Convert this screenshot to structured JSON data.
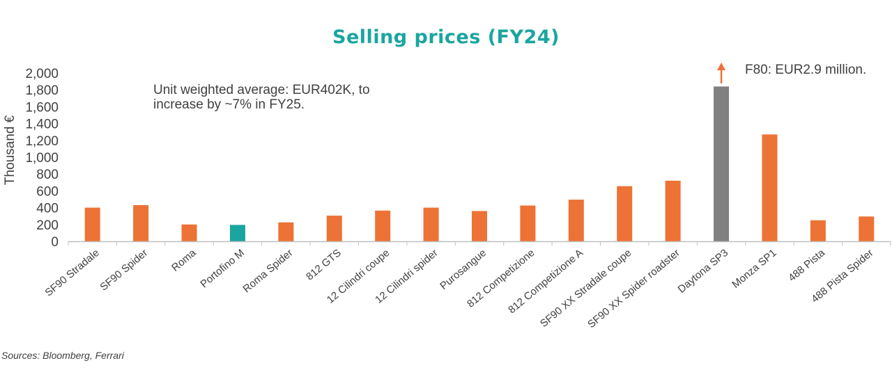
{
  "chart_data": {
    "type": "bar",
    "title": "Selling prices (FY24)",
    "ylabel": "Thousand €",
    "xlabel": "",
    "ylim": [
      0,
      2000
    ],
    "yticks": [
      0,
      200,
      400,
      600,
      800,
      1000,
      1200,
      1400,
      1600,
      1800,
      2000
    ],
    "ytick_labels": [
      "0",
      "200",
      "400",
      "600",
      "800",
      "1,000",
      "1,200",
      "1,400",
      "1,600",
      "1,800",
      "2,000"
    ],
    "grid": false,
    "categories": [
      "SF90 Stradale",
      "SF90 Spider",
      "Roma",
      "Portofino M",
      "Roma Spider",
      "812 GTS",
      "12 Cilindri coupe",
      "12 Cilindri spider",
      "Purosangue",
      "812 Competizione",
      "812 Competizione A",
      "SF90 XX Stradale coupe",
      "SF90 XX Spider roadster",
      "Daytona SP3",
      "Monza SP1",
      "488 Pista",
      "488 Pista Spider"
    ],
    "values": [
      400,
      430,
      200,
      195,
      225,
      305,
      365,
      400,
      360,
      425,
      495,
      655,
      720,
      1840,
      1270,
      250,
      295
    ],
    "bar_colors": [
      "#ed7235",
      "#ed7235",
      "#ed7235",
      "#1aa5a0",
      "#ed7235",
      "#ed7235",
      "#ed7235",
      "#ed7235",
      "#ed7235",
      "#ed7235",
      "#ed7235",
      "#ed7235",
      "#ed7235",
      "#808080",
      "#ed7235",
      "#ed7235",
      "#ed7235"
    ],
    "annotations": {
      "average_line1": "Unit weighted average: EUR402K, to",
      "average_line2": "increase by ~7% in FY25.",
      "f80_note": "F80: EUR2.9 million."
    }
  },
  "colors": {
    "title": "#1aa5a0",
    "bar_default": "#ed7235",
    "bar_highlight": "#1aa5a0",
    "bar_gray": "#808080",
    "arrow": "#ed7235",
    "axis": "#bfbfbf",
    "text": "#404040"
  },
  "source": "Sources: Bloomberg, Ferrari"
}
